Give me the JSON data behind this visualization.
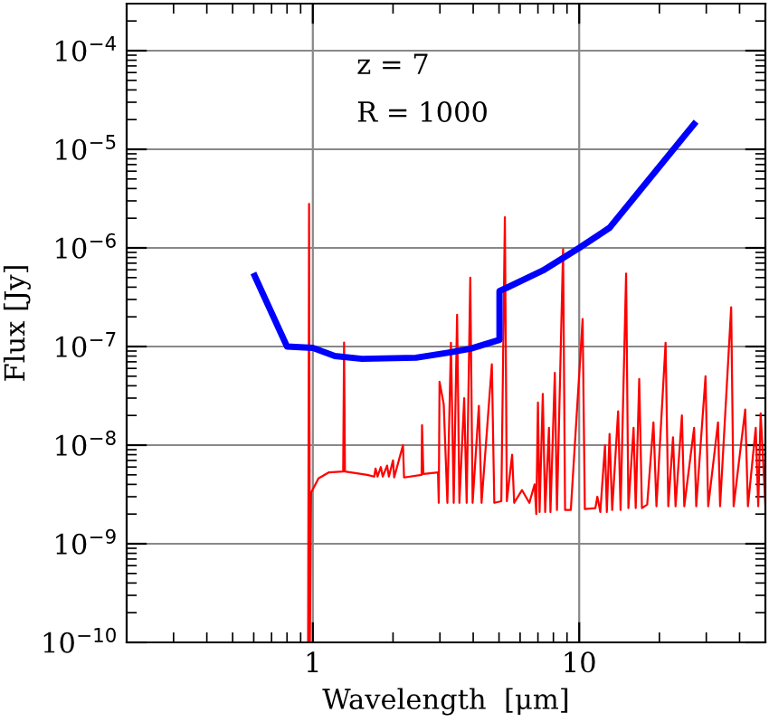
{
  "chart_data": {
    "type": "line",
    "xlabel": "Wavelength  [μm]",
    "ylabel": "Flux [Jy]",
    "annotations": [
      "z = 7",
      "R = 1000"
    ],
    "log": "xy",
    "grid": true,
    "legend": false,
    "marker": "none",
    "line_style": "solid",
    "xlim": [
      0.2,
      50
    ],
    "ylim": [
      1e-10,
      0.0003
    ],
    "xticks": [
      1,
      10
    ],
    "yticks": [
      {
        "value": 1e-10,
        "label": "10$^{−10}$"
      },
      {
        "value": 1e-09,
        "label": "10$^{−9}$"
      },
      {
        "value": 1e-08,
        "label": "10$^{−8}$"
      },
      {
        "value": 1e-07,
        "label": "10$^{−7}$"
      },
      {
        "value": 1e-06,
        "label": "10$^{−6}$"
      },
      {
        "value": 1e-05,
        "label": "10$^{−5}$"
      },
      {
        "value": 0.0001,
        "label": "10$^{−4}$"
      }
    ],
    "series": [
      {
        "color": "#ff0000",
        "x": [
          0.96,
          0.968,
          0.975,
          0.985,
          1.05,
          1.15,
          1.3,
          1.31,
          1.32,
          1.6,
          1.7,
          1.72,
          1.75,
          1.8,
          1.83,
          1.9,
          1.93,
          2.0,
          2.02,
          2.18,
          2.2,
          2.56,
          2.57,
          2.6,
          2.95,
          2.97,
          2.99,
          3.1,
          3.2,
          3.3,
          3.38,
          3.48,
          3.55,
          3.7,
          3.78,
          3.9,
          3.98,
          4.2,
          4.3,
          4.7,
          4.8,
          5.1,
          5.26,
          5.35,
          5.6,
          5.7,
          6.1,
          6.5,
          6.8,
          6.9,
          7.0,
          7.1,
          7.3,
          7.45,
          7.7,
          7.8,
          8.1,
          8.25,
          8.7,
          8.85,
          9.3,
          10.3,
          10.5,
          11.5,
          11.7,
          12.0,
          12.5,
          12.7,
          13.0,
          13.3,
          14.0,
          14.3,
          15.0,
          15.3,
          16.0,
          16.3,
          16.8,
          17.2,
          18.0,
          19.0,
          19.5,
          21.1,
          21.6,
          22.5,
          23,
          24.3,
          24.8,
          27,
          27.5,
          29.8,
          30.5,
          33.2,
          33.8,
          37.2,
          38,
          42,
          43,
          46,
          47,
          48,
          50
        ],
        "values": [
          1e-10,
          2.8e-06,
          1e-10,
          3.3e-09,
          4.6e-09,
          5.3e-09,
          5.4e-09,
          1.1e-07,
          5.4e-09,
          5e-09,
          4.8e-09,
          5.8e-09,
          4.8e-09,
          6e-09,
          4.8e-09,
          6.2e-09,
          4.8e-09,
          7e-09,
          4.7e-09,
          1e-08,
          4.7e-09,
          5e-09,
          1.6e-08,
          5.1e-09,
          5.3e-09,
          2.6e-09,
          4.4e-08,
          2.6e-08,
          2.6e-09,
          1.09e-07,
          2.6e-09,
          2.1e-07,
          2.6e-09,
          3e-08,
          2.6e-09,
          5e-07,
          2.6e-09,
          2.5e-08,
          2.6e-09,
          6.6e-08,
          2.6e-09,
          2.7e-09,
          2.05e-06,
          2.7e-09,
          8e-09,
          2.6e-09,
          3.5e-09,
          2.6e-09,
          4e-09,
          2e-09,
          2.7e-08,
          2.1e-09,
          3.3e-08,
          2.1e-09,
          1.5e-08,
          2.1e-09,
          5.4e-08,
          2.2e-09,
          9.7e-07,
          2.2e-09,
          2.2e-09,
          1.9e-07,
          2.25e-09,
          2.3e-09,
          3e-09,
          2.1e-09,
          1e-08,
          2.1e-09,
          1.3e-08,
          2.2e-09,
          2.2e-08,
          2.2e-09,
          5.5e-07,
          2.3e-09,
          1.5e-08,
          2.3e-09,
          4.7e-08,
          2.3e-09,
          2.5e-09,
          1.7e-08,
          2.4e-09,
          1.09e-07,
          2.4e-09,
          1.2e-08,
          2.4e-09,
          2e-08,
          2.4e-09,
          1.5e-08,
          2.4e-09,
          5e-08,
          2.4e-09,
          1.7e-08,
          2.4e-09,
          2.5e-07,
          2.4e-09,
          2.3e-08,
          2.4e-09,
          1.5e-08,
          2.4e-09,
          2.1e-08,
          2.5e-09
        ]
      },
      {
        "color": "#0000ff",
        "x": [
          0.605,
          0.8,
          1.0,
          1.21,
          1.53,
          2.44,
          3.25,
          3.91,
          5.02,
          5.02,
          5.35,
          7.31,
          10,
          13.0,
          27.0
        ],
        "values": [
          5.2e-07,
          1e-07,
          9.7e-08,
          8e-08,
          7.5e-08,
          7.7e-08,
          8.7e-08,
          9.5e-08,
          1.17e-07,
          3.65e-07,
          3.95e-07,
          5.9e-07,
          1e-06,
          1.6e-06,
          1.8e-05
        ]
      }
    ]
  }
}
